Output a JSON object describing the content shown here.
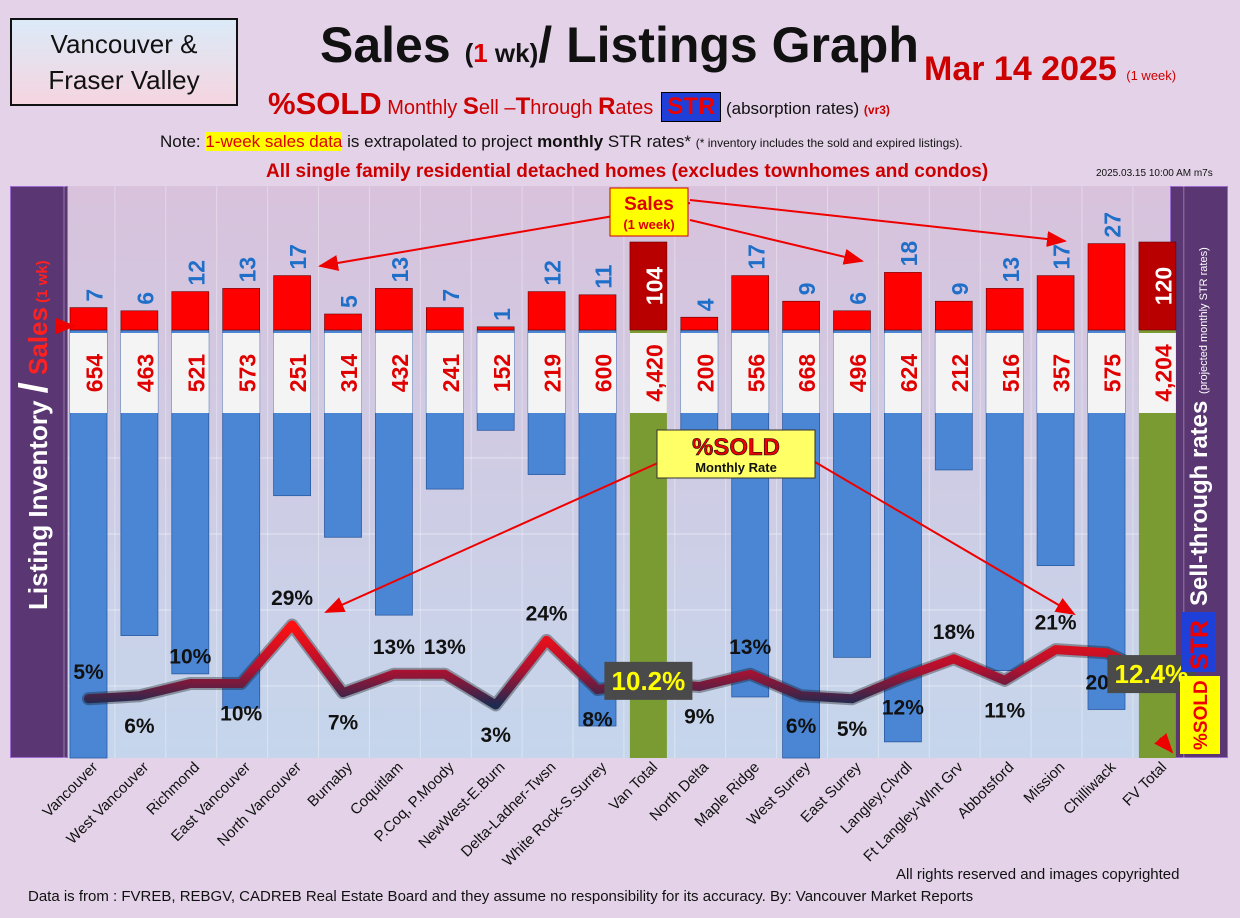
{
  "header": {
    "region_line1": "Vancouver &",
    "region_line2": "Fraser Valley",
    "title_a": "Sales (",
    "title_b": "1",
    "title_c": " wk)",
    "title_d": "/ Listings Graph",
    "date": "Mar 14  2025",
    "date_note": "(1 week)",
    "sub_pct": "%SOLD",
    "sub_m": " Monthly ",
    "sub_s": "S",
    "sub_ell": "ell –",
    "sub_t": "T",
    "sub_hrough": "hrough ",
    "sub_r": "R",
    "sub_ates": "ates",
    "sub_str": "STR",
    "sub_absorb": " (absorption rates) ",
    "sub_vr": "(vr3)",
    "note_a": "Note: ",
    "note_hl": "1-week sales data",
    "note_b": " is extrapolated to project ",
    "note_bold": "monthly",
    "note_c": " STR rates* ",
    "note_tiny": "(* inventory includes the sold and expired listings).",
    "scope": "All single family residential detached homes (excludes townhomes and condos)",
    "timestamp": "2025.03.15 10:00 AM m7s"
  },
  "footer": {
    "copyright": "All rights reserved and  images copyrighted",
    "source": "Data is from : FVREB, REBGV, CADREB Real Estate Board and they assume no responsibility for its accuracy. By: Vancouver Market Reports"
  },
  "chart_data": {
    "type": "bar",
    "categories": [
      "Vancouver",
      "West Vancouver",
      "Richmond",
      "East Vancouver",
      "North Vancouver",
      "Burnaby",
      "Coquitlam",
      "P.Coq, P.Moody",
      "NewWest-E.Burn",
      "Delta-Ladner-Twsn",
      "White Rock-S.Surrey",
      "Van Total",
      "North Delta",
      "Maple Ridge",
      "West Surrey",
      "East Surrey",
      "Langley,Clvrdl",
      "Ft Langley-Wlnt Grv",
      "Abbotsford",
      "Mission",
      "Chilliwack",
      "FV Total"
    ],
    "listings": [
      654,
      463,
      521,
      573,
      251,
      314,
      432,
      241,
      152,
      219,
      600,
      4420,
      200,
      556,
      668,
      496,
      624,
      212,
      516,
      357,
      575,
      4204
    ],
    "listings_labels": [
      "654",
      "463",
      "521",
      "573",
      "251",
      "314",
      "432",
      "241",
      "152",
      "219",
      "600",
      "4,420",
      "200",
      "556",
      "668",
      "496",
      "624",
      "212",
      "516",
      "357",
      "575",
      "4,204"
    ],
    "sales_1wk": [
      7,
      6,
      12,
      13,
      17,
      5,
      13,
      7,
      1,
      12,
      11,
      104,
      4,
      17,
      9,
      6,
      18,
      9,
      13,
      17,
      27,
      120
    ],
    "str_pct": [
      5,
      6,
      10,
      10,
      29,
      7,
      13,
      13,
      3,
      24,
      8,
      10.2,
      9,
      13,
      6,
      5,
      12,
      18,
      11,
      21,
      20,
      12.4
    ],
    "str_labels": [
      "5%",
      "6%",
      "10%",
      "10%",
      "29%",
      "7%",
      "13%",
      "13%",
      "3%",
      "24%",
      "8%",
      "10.2%",
      "9%",
      "13%",
      "6%",
      "5%",
      "12%",
      "18%",
      "11%",
      "21%",
      "20%",
      "12.4%"
    ],
    "total_indices": [
      11,
      21
    ],
    "left_axis_label_a": "Listing Inventory ",
    "left_axis_label_b": "/",
    "left_axis_label_c": " Sales",
    "left_axis_label_d": " (1 wk)",
    "right_axis_label_a": "Sell-through rates ",
    "right_axis_label_b": "(projected monthly STR rates)",
    "right_axis_str": "STR",
    "right_axis_sold": "%SOLD",
    "sales_callout_1": "Sales",
    "sales_callout_2": "(1 week)",
    "sold_callout_1": "%SOLD",
    "sold_callout_2": "Monthly Rate",
    "colors": {
      "listing_bar": "#4a86d4",
      "total_bar": "#7a9a32",
      "sales_bar": "#ff0000",
      "total_sales_bar": "#b80000",
      "sales_label": "#1f6fc9",
      "listing_label": "#e00000",
      "line_high": "#ff0000",
      "line_low": "#1e2a50"
    }
  }
}
